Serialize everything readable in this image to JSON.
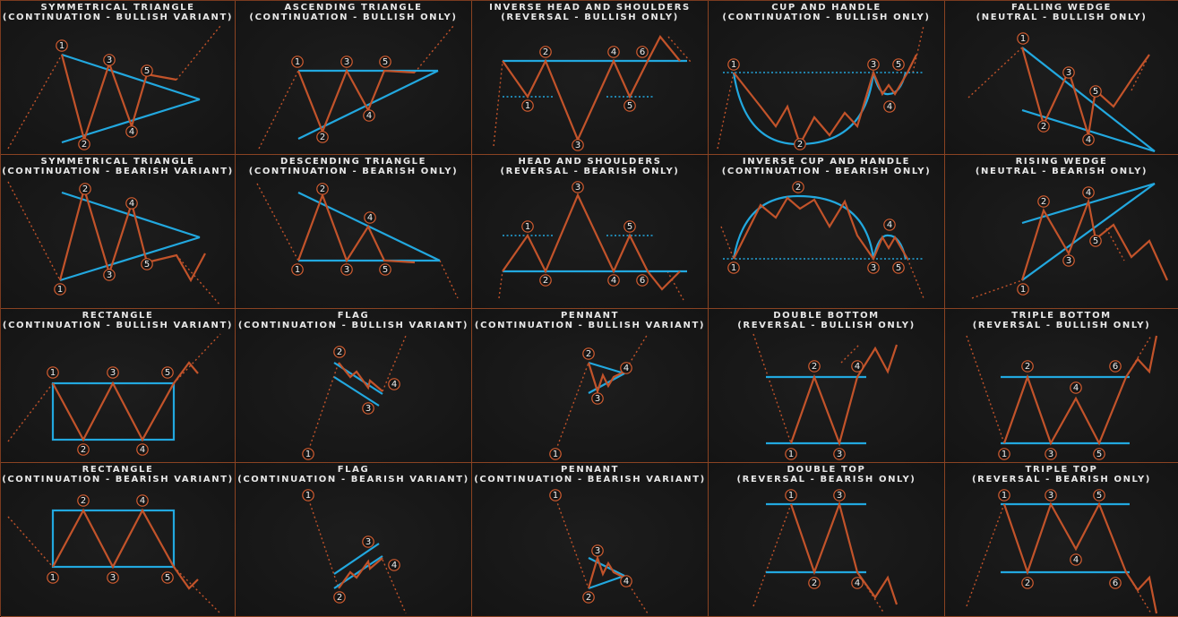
{
  "colors": {
    "pattern": "#c2532a",
    "boundary": "#22a8df",
    "grid": "#8a4322",
    "background": "#161616",
    "text": "#e8e8e8"
  },
  "patterns": [
    {
      "name": "SYMMETRICAL TRIANGLE",
      "sub": "(CONTINUATION - BULLISH VARIANT)"
    },
    {
      "name": "ASCENDING TRIANGLE",
      "sub": "(CONTINUATION - BULLISH ONLY)"
    },
    {
      "name": "INVERSE HEAD AND SHOULDERS",
      "sub": "(REVERSAL - BULLISH ONLY)"
    },
    {
      "name": "CUP AND HANDLE",
      "sub": "(CONTINUATION - BULLISH ONLY)"
    },
    {
      "name": "FALLING WEDGE",
      "sub": "(NEUTRAL - BULLISH ONLY)"
    },
    {
      "name": "SYMMETRICAL TRIANGLE",
      "sub": "(CONTINUATION - BEARISH VARIANT)"
    },
    {
      "name": "DESCENDING TRIANGLE",
      "sub": "(CONTINUATION - BEARISH ONLY)"
    },
    {
      "name": "HEAD AND SHOULDERS",
      "sub": "(REVERSAL - BEARISH ONLY)"
    },
    {
      "name": "INVERSE CUP AND HANDLE",
      "sub": "(CONTINUATION - BEARISH ONLY)"
    },
    {
      "name": "RISING WEDGE",
      "sub": "(NEUTRAL - BEARISH ONLY)"
    },
    {
      "name": "RECTANGLE",
      "sub": "(CONTINUATION - BULLISH VARIANT)"
    },
    {
      "name": "FLAG",
      "sub": "(CONTINUATION - BULLISH VARIANT)"
    },
    {
      "name": "PENNANT",
      "sub": "(CONTINUATION - BULLISH VARIANT)"
    },
    {
      "name": "DOUBLE BOTTOM",
      "sub": "(REVERSAL - BULLISH ONLY)"
    },
    {
      "name": "TRIPLE BOTTOM",
      "sub": "(REVERSAL - BULLISH ONLY)"
    },
    {
      "name": "RECTANGLE",
      "sub": "(CONTINUATION - BEARISH VARIANT)"
    },
    {
      "name": "FLAG",
      "sub": "(CONTINUATION - BEARISH VARIANT)"
    },
    {
      "name": "PENNANT",
      "sub": "(CONTINUATION - BEARISH VARIANT)"
    },
    {
      "name": "DOUBLE TOP",
      "sub": "(REVERSAL - BEARISH ONLY)"
    },
    {
      "name": "TRIPLE TOP",
      "sub": "(REVERSAL - BEARISH ONLY)"
    }
  ],
  "markers": {
    "m1": "1",
    "m2": "2",
    "m3": "3",
    "m4": "4",
    "m5": "5",
    "m6": "6"
  }
}
